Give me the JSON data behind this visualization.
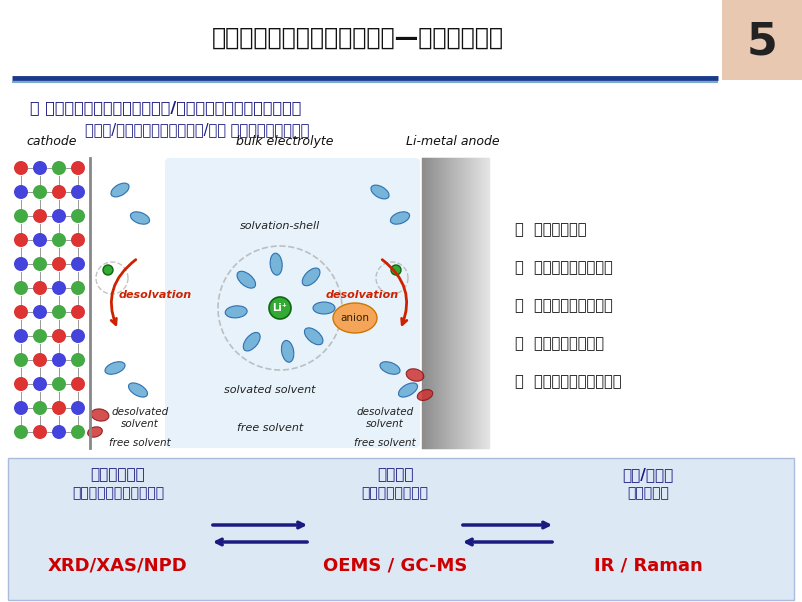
{
  "title": "特色电化学原位谱学表征方法—深度机理研究",
  "page_num": "5",
  "bg_color": "#ffffff",
  "page_num_bg": "#e8c8b0",
  "subtitle1": "口 还原并原位分析二次电池电极/电解液表界面、结构演化过程",
  "subtitle2": "（厦大/嘉庚实验室：搭建原位/工况 电池表征谱学平台）",
  "subtitle1_color": "#1a1a80",
  "subtitle2_color": "#1a1a80",
  "right_bullets": [
    "口  去溶剂化过程",
    "口  电解液分解成膜过程",
    "口  电解液分解产气过程",
    "口  电极材料产气过程",
    "口  电极材料结构演化过程"
  ],
  "bullet_color": "#111111",
  "bottom_col1_title": "电极材料演化",
  "bottom_col1_sub": "（局域环境、晶体结构）",
  "bottom_col1_method": "XRD/XAS/NPD",
  "bottom_col2_title": "电池产气",
  "bottom_col2_sub": "（电极、电解液）",
  "bottom_col2_method": "OEMS / GC-MS",
  "bottom_col3_title": "电极/电解液",
  "bottom_col3_sub": "表界面反应",
  "bottom_col3_method": "IR / Raman",
  "bottom_text_color": "#1a1a80",
  "bottom_method_color": "#cc0000",
  "arrow_color": "#1a1a80"
}
